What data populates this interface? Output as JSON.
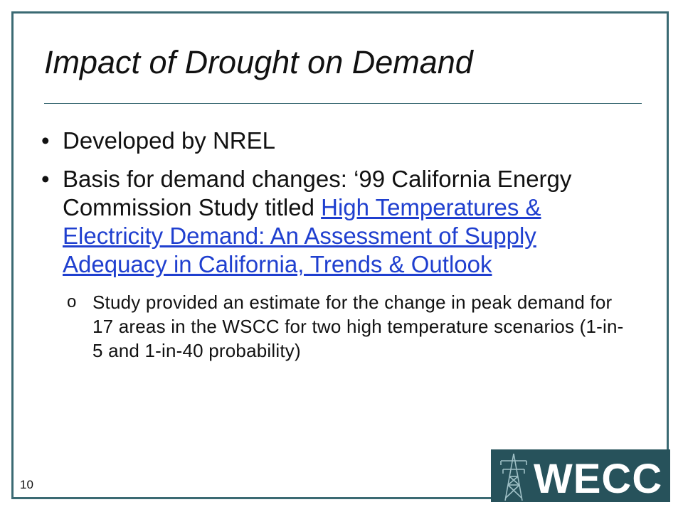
{
  "slide": {
    "title": "Impact of Drought on Demand",
    "page_number": "10"
  },
  "bullets": [
    {
      "text_before": "Developed by NREL"
    },
    {
      "text_before": "Basis for demand changes: ‘99 California Energy Commission Study titled ",
      "link_text": "High Temperatures & Electricity Demand: An Assessment of Supply Adequacy in California, Trends & Outlook"
    }
  ],
  "sub_bullet": {
    "marker": "o",
    "text": "Study provided an estimate for the change in peak demand for 17 areas in the WSCC for two high temperature scenarios (1-in-5 and 1-in-40 probability)"
  },
  "logo": {
    "text": "WECC",
    "icon": "transmission-tower-icon"
  },
  "colors": {
    "frame": "#3b6a73",
    "link": "#1f3fcf",
    "logo_bg": "#27525b"
  }
}
